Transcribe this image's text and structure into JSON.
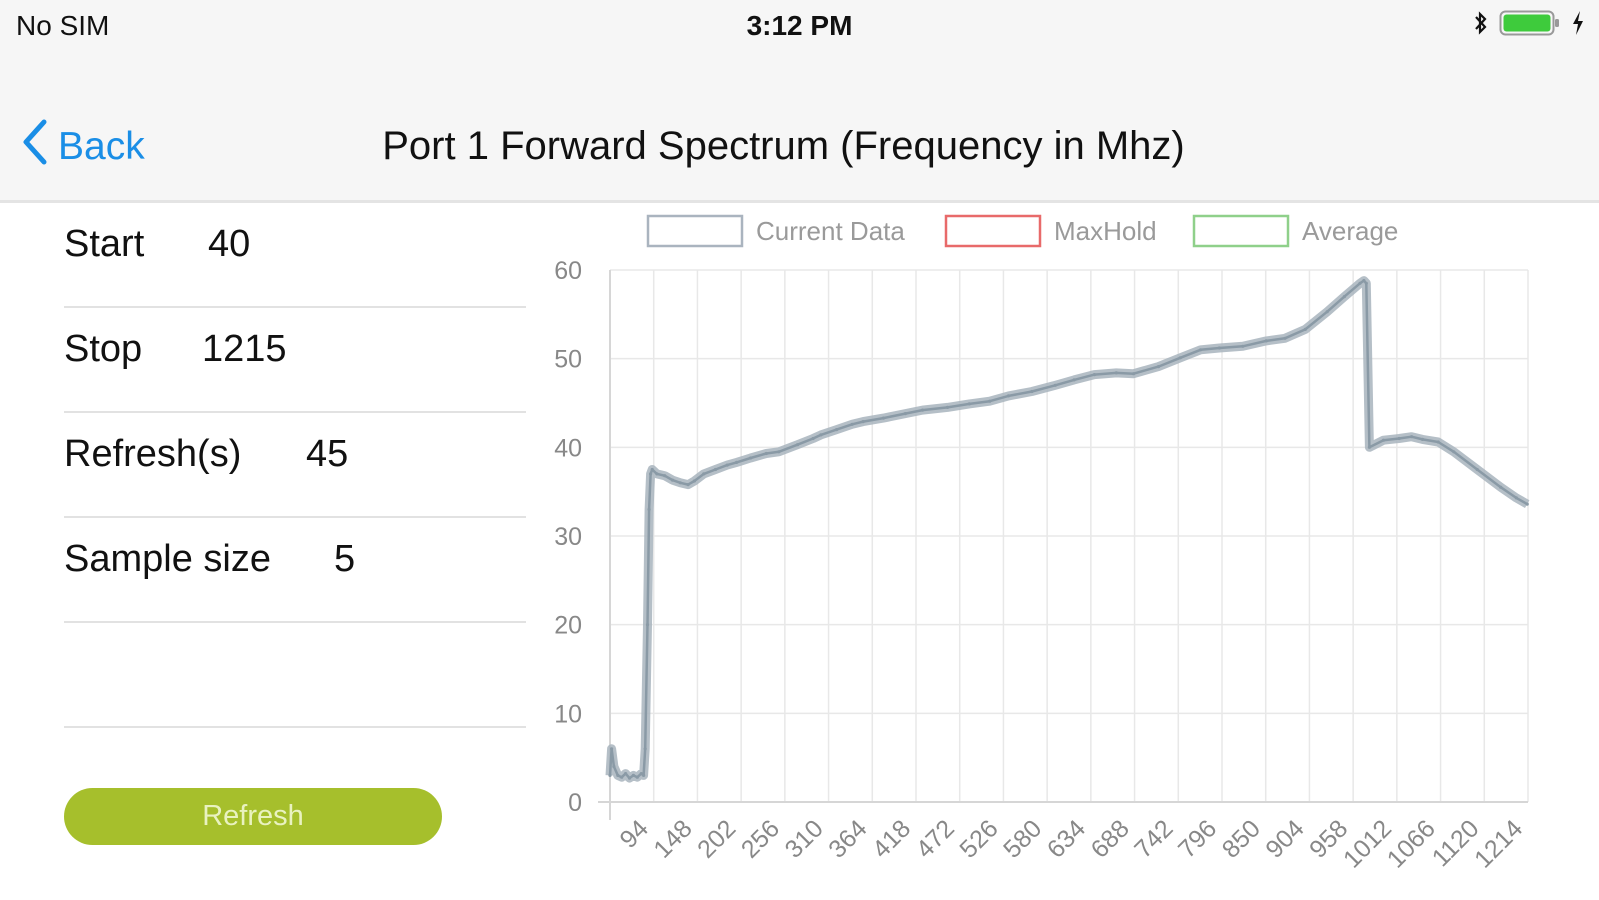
{
  "status_bar": {
    "carrier": "No SIM",
    "time": "3:12 PM",
    "icons": [
      "bluetooth-icon",
      "battery-icon",
      "charging-bolt-icon"
    ]
  },
  "nav": {
    "back_label": "Back",
    "title": "Port 1 Forward Spectrum (Frequency in Mhz)"
  },
  "form": {
    "start_label": "Start",
    "start_value": "40",
    "stop_label": "Stop",
    "stop_value": "1215",
    "refresh_label": "Refresh(s)",
    "refresh_value": "45",
    "sample_label": "Sample size",
    "sample_value": "5",
    "refresh_button": "Refresh"
  },
  "colors": {
    "accent": "#1a8ee6",
    "button": "#a6bf2c",
    "current_data": "#8a9aa6",
    "maxhold": "#e86a6a",
    "average": "#8fd08a"
  },
  "chart_data": {
    "type": "line",
    "legend": [
      {
        "name": "Current Data",
        "color": "#aab4bf"
      },
      {
        "name": "MaxHold",
        "color": "#e86a6a"
      },
      {
        "name": "Average",
        "color": "#8fd08a"
      }
    ],
    "legend_placement": "top",
    "grid": true,
    "xlim": [
      40,
      1215
    ],
    "ylim": [
      0,
      60
    ],
    "y_ticks": [
      0,
      10,
      20,
      30,
      40,
      50,
      60
    ],
    "x_tick_labels": [
      "94",
      "148",
      "202",
      "256",
      "310",
      "364",
      "418",
      "472",
      "526",
      "580",
      "634",
      "688",
      "742",
      "796",
      "850",
      "904",
      "958",
      "1012",
      "1066",
      "1120",
      "1214"
    ],
    "series": [
      {
        "name": "Current Data",
        "x": [
          40,
          42,
          45,
          50,
          55,
          60,
          65,
          70,
          75,
          80,
          83,
          85,
          88,
          90,
          92,
          94,
          100,
          110,
          120,
          130,
          140,
          148,
          160,
          175,
          190,
          202,
          220,
          240,
          256,
          280,
          300,
          310,
          330,
          350,
          364,
          390,
          418,
          440,
          472,
          500,
          526,
          550,
          580,
          610,
          634,
          660,
          688,
          710,
          742,
          770,
          796,
          820,
          850,
          880,
          904,
          930,
          958,
          980,
          1000,
          1005,
          1008,
          1012,
          1030,
          1050,
          1066,
          1080,
          1100,
          1120,
          1150,
          1180,
          1200,
          1214
        ],
        "y": [
          3,
          6,
          4,
          3,
          2.8,
          3.2,
          2.7,
          3,
          2.8,
          3.2,
          3,
          6,
          20,
          33,
          37,
          37.5,
          37,
          36.8,
          36.3,
          36,
          35.8,
          36.2,
          37,
          37.5,
          38,
          38.3,
          38.8,
          39.3,
          39.5,
          40.3,
          41,
          41.4,
          42,
          42.6,
          42.9,
          43.3,
          43.8,
          44.2,
          44.5,
          44.9,
          45.2,
          45.8,
          46.3,
          47,
          47.6,
          48.2,
          48.4,
          48.3,
          49.1,
          50.1,
          51,
          51.2,
          51.4,
          52,
          52.3,
          53.3,
          55.3,
          57,
          58.5,
          58.8,
          58.5,
          40,
          40.8,
          41,
          41.2,
          40.9,
          40.6,
          39.5,
          37.5,
          35.5,
          34.3,
          33.6
        ]
      }
    ]
  }
}
